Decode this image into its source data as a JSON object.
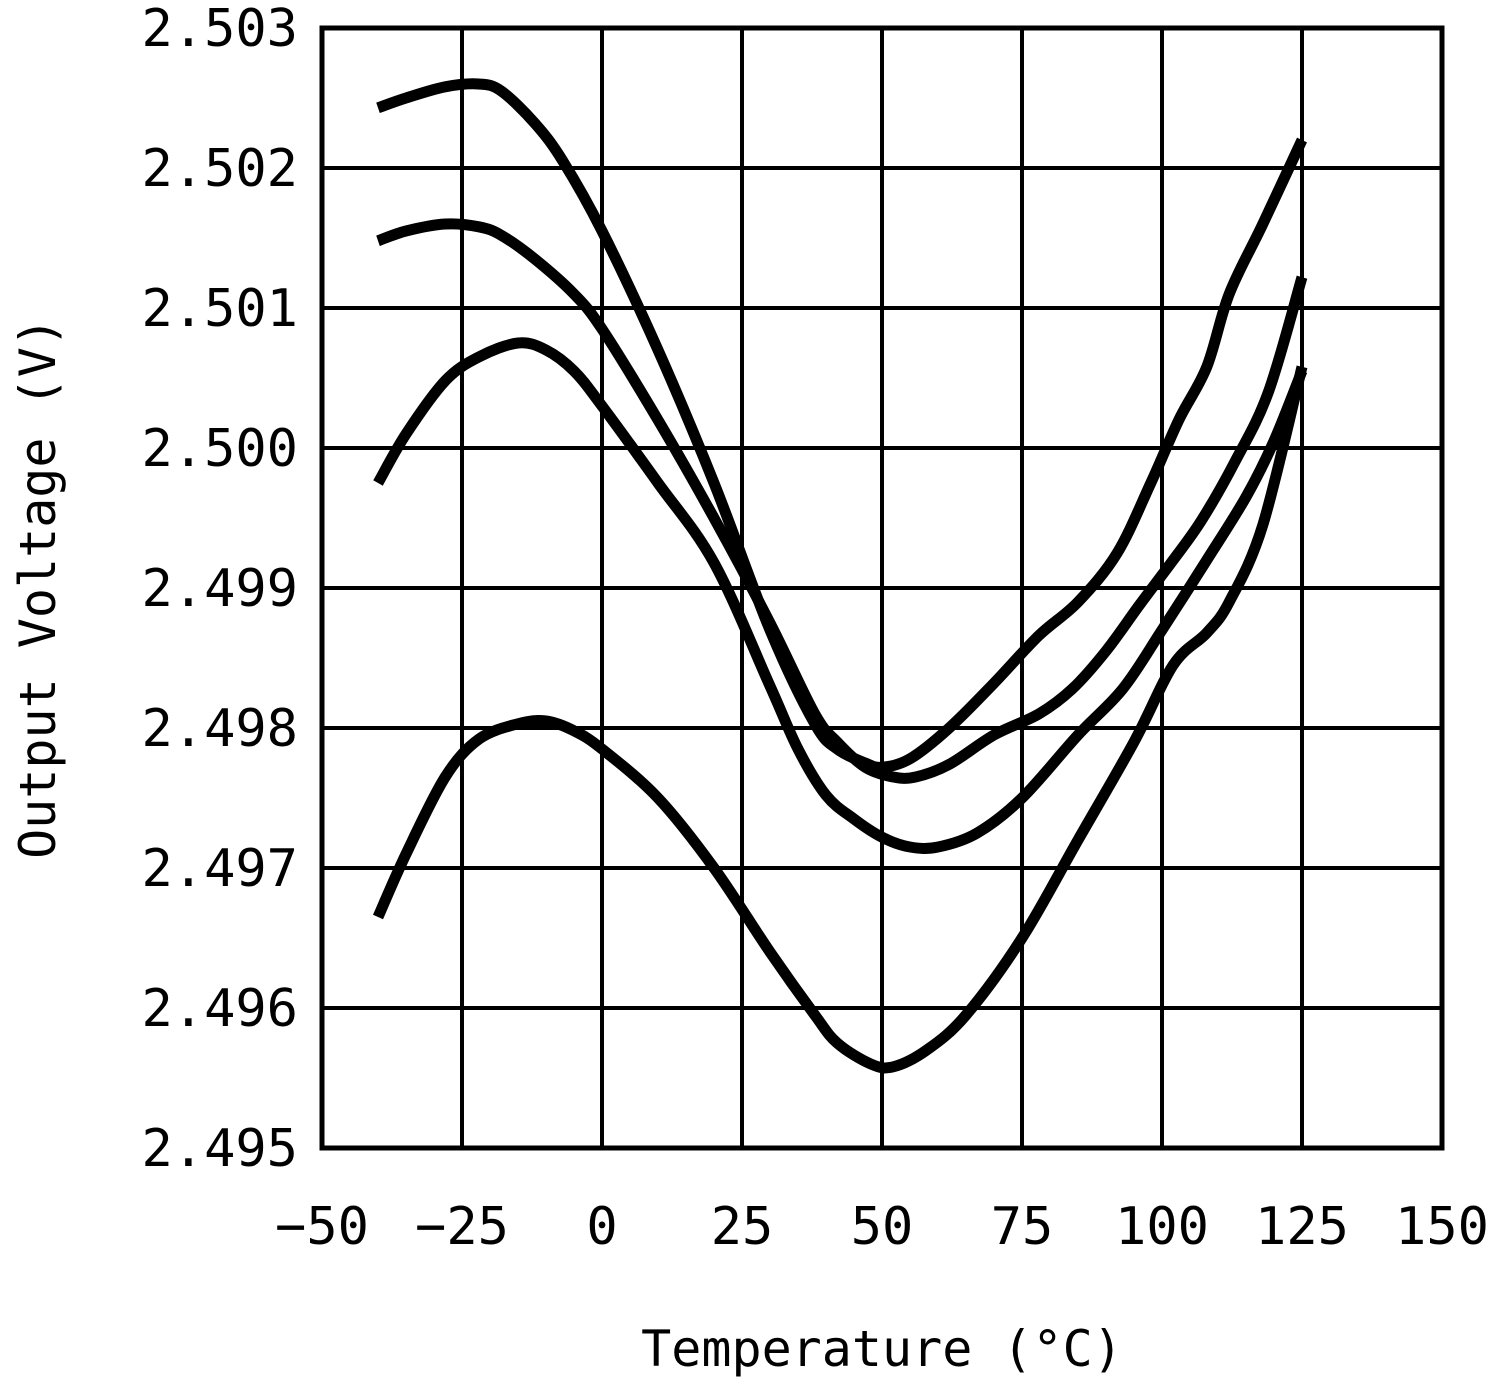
{
  "chart_data": {
    "type": "line",
    "title": "",
    "xlabel": "Temperature (°C)",
    "ylabel": "Output Voltage (V)",
    "xlim": [
      -50,
      150
    ],
    "ylim": [
      2.495,
      2.503
    ],
    "x_ticks": [
      "-50",
      "-25",
      "0",
      "25",
      "50",
      "75",
      "100",
      "125",
      "150"
    ],
    "y_ticks": [
      "2.503",
      "2.502",
      "2.501",
      "2.500",
      "2.499",
      "2.498",
      "2.497",
      "2.496",
      "2.495"
    ],
    "grid": true,
    "series": [
      {
        "x": [
          -40,
          -35,
          -28,
          -22,
          -18,
          -12,
          -7,
          0,
          10,
          20,
          30,
          38,
          42,
          47,
          50,
          55,
          62,
          70,
          78,
          85,
          92,
          98,
          103,
          108,
          112,
          118,
          125
        ],
        "y": [
          2.50243,
          2.5025,
          2.50258,
          2.5026,
          2.50255,
          2.50232,
          2.50205,
          2.50155,
          2.5007,
          2.49975,
          2.4987,
          2.49803,
          2.49785,
          2.49775,
          2.49772,
          2.49778,
          2.498,
          2.49832,
          2.49866,
          2.4989,
          2.49925,
          2.49975,
          2.5002,
          2.50058,
          2.5011,
          2.5016,
          2.5022
        ]
      },
      {
        "x": [
          -40,
          -35,
          -28,
          -22,
          -18,
          -12,
          -5,
          0,
          10,
          20,
          30,
          38,
          42,
          47,
          52,
          56,
          62,
          70,
          78,
          84,
          90,
          96,
          102,
          107,
          113,
          119,
          125
        ],
        "y": [
          2.50148,
          2.50155,
          2.5016,
          2.50158,
          2.50152,
          2.50135,
          2.5011,
          2.50085,
          2.5002,
          2.4995,
          2.49875,
          2.4981,
          2.4979,
          2.49772,
          2.49765,
          2.49765,
          2.49774,
          2.49795,
          2.4981,
          2.49828,
          2.49855,
          2.49888,
          2.4992,
          2.49948,
          2.4999,
          2.5004,
          2.50122
        ]
      },
      {
        "x": [
          -40,
          -35,
          -28,
          -22,
          -15,
          -10,
          -5,
          0,
          10,
          20,
          30,
          35,
          40,
          45,
          50,
          55,
          60,
          67,
          75,
          85,
          93,
          100,
          108,
          115,
          120,
          125
        ],
        "y": [
          2.49975,
          2.5001,
          2.50048,
          2.50065,
          2.50075,
          2.5007,
          2.50055,
          2.5003,
          2.49975,
          2.49918,
          2.4983,
          2.49785,
          2.49752,
          2.49735,
          2.49722,
          2.49715,
          2.49715,
          2.49725,
          2.4975,
          2.49795,
          2.49828,
          2.4987,
          2.4992,
          2.49965,
          2.50005,
          2.50055
        ]
      },
      {
        "x": [
          -40,
          -35,
          -28,
          -22,
          -15,
          -10,
          -5,
          0,
          10,
          20,
          30,
          38,
          42,
          48,
          52,
          58,
          65,
          75,
          85,
          95,
          102,
          108,
          112,
          118,
          125
        ],
        "y": [
          2.49665,
          2.4971,
          2.49765,
          2.49792,
          2.49803,
          2.49805,
          2.49798,
          2.49785,
          2.4975,
          2.497,
          2.4964,
          2.49595,
          2.49575,
          2.4956,
          2.49558,
          2.4957,
          2.49595,
          2.4965,
          2.4972,
          2.4979,
          2.49845,
          2.49868,
          2.4989,
          2.49945,
          2.50058
        ]
      }
    ]
  }
}
